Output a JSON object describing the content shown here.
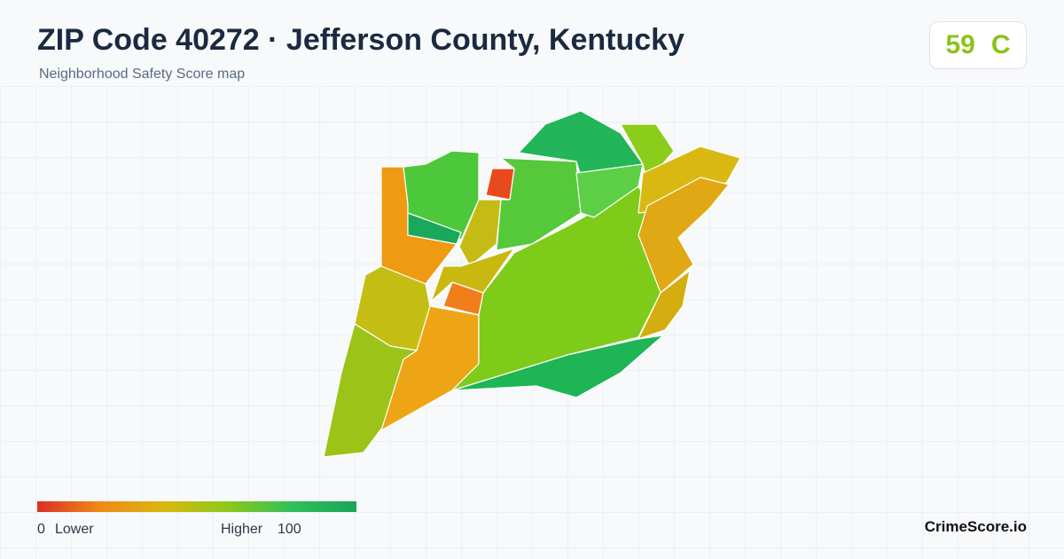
{
  "header": {
    "title": "ZIP Code 40272 · Jefferson County, Kentucky",
    "subtitle": "Neighborhood Safety Score map"
  },
  "score": {
    "value": 59,
    "grade": "C"
  },
  "legend": {
    "min": 0,
    "min_label": "Lower",
    "max_label": "Higher",
    "max": 100
  },
  "brand": "CrimeScore.io"
}
